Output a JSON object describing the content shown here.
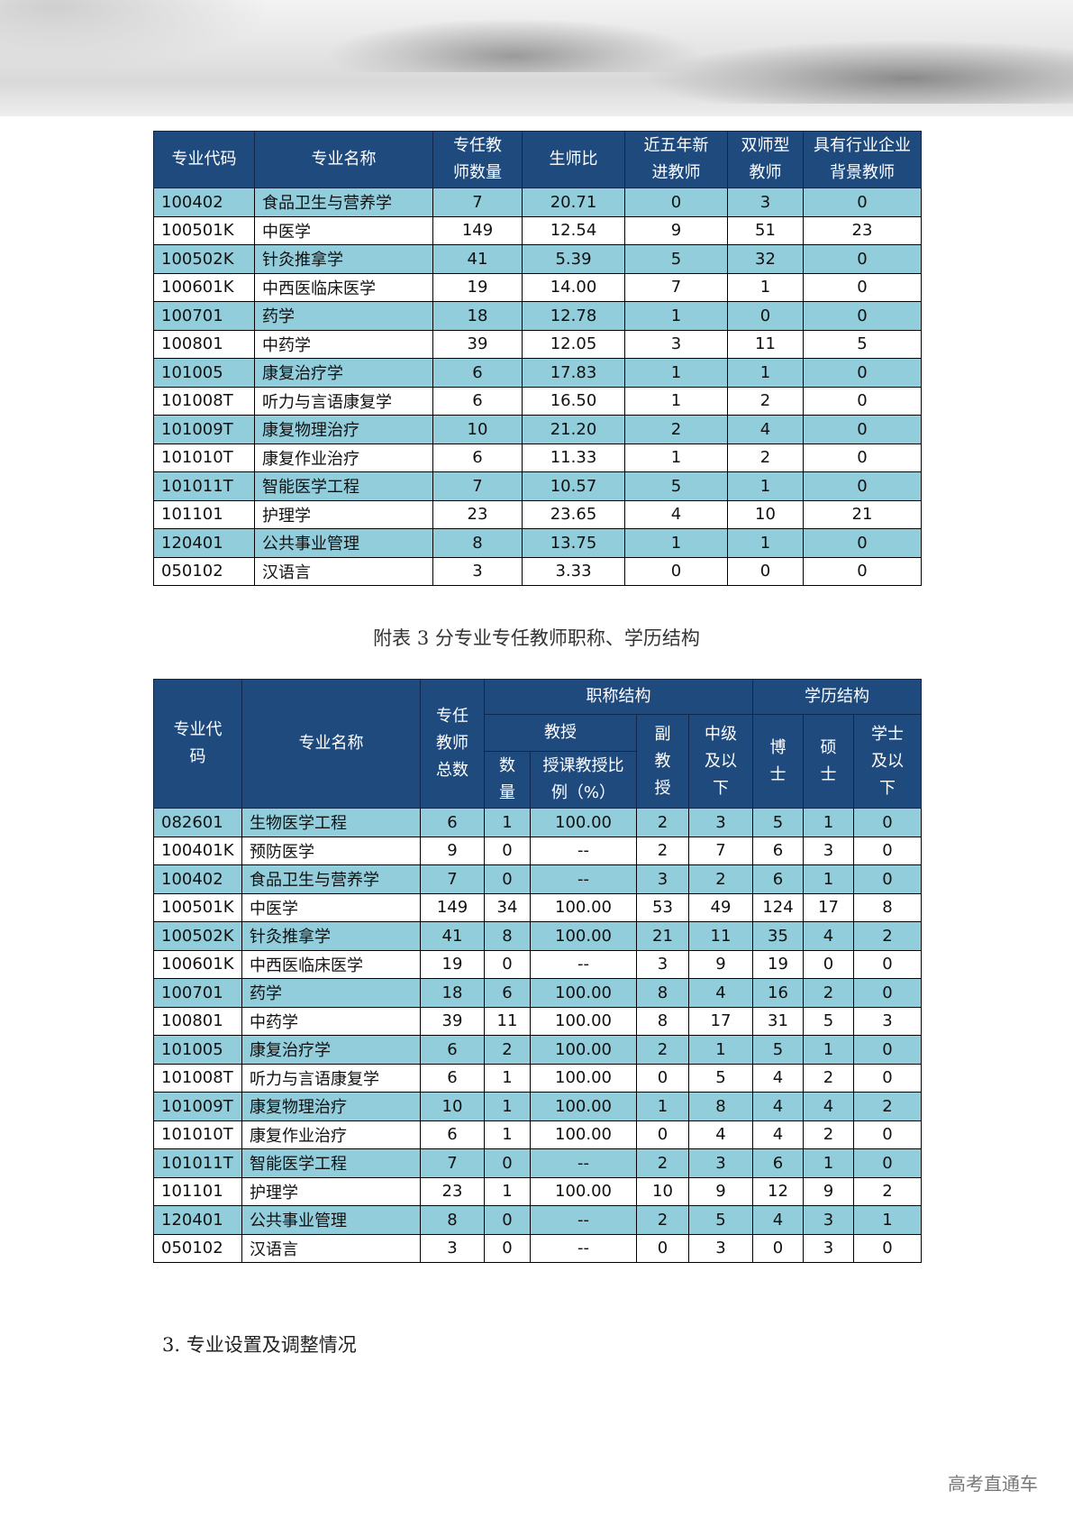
{
  "table1": {
    "headers": [
      "专业代码",
      "专业名称",
      "专任教师数量",
      "生师比",
      "近五年新进教师",
      "双师型教师",
      "具有行业企业背景教师"
    ],
    "rows": [
      [
        "100402",
        "食品卫生与营养学",
        "7",
        "20.71",
        "0",
        "3",
        "0"
      ],
      [
        "100501K",
        "中医学",
        "149",
        "12.54",
        "9",
        "51",
        "23"
      ],
      [
        "100502K",
        "针灸推拿学",
        "41",
        "5.39",
        "5",
        "32",
        "0"
      ],
      [
        "100601K",
        "中西医临床医学",
        "19",
        "14.00",
        "7",
        "1",
        "0"
      ],
      [
        "100701",
        "药学",
        "18",
        "12.78",
        "1",
        "0",
        "0"
      ],
      [
        "100801",
        "中药学",
        "39",
        "12.05",
        "3",
        "11",
        "5"
      ],
      [
        "101005",
        "康复治疗学",
        "6",
        "17.83",
        "1",
        "1",
        "0"
      ],
      [
        "101008T",
        "听力与言语康复学",
        "6",
        "16.50",
        "1",
        "2",
        "0"
      ],
      [
        "101009T",
        "康复物理治疗",
        "10",
        "21.20",
        "2",
        "4",
        "0"
      ],
      [
        "101010T",
        "康复作业治疗",
        "6",
        "11.33",
        "1",
        "2",
        "0"
      ],
      [
        "101011T",
        "智能医学工程",
        "7",
        "10.57",
        "5",
        "1",
        "0"
      ],
      [
        "101101",
        "护理学",
        "23",
        "23.65",
        "4",
        "10",
        "21"
      ],
      [
        "120401",
        "公共事业管理",
        "8",
        "13.75",
        "1",
        "1",
        "0"
      ],
      [
        "050102",
        "汉语言",
        "3",
        "3.33",
        "0",
        "0",
        "0"
      ]
    ]
  },
  "caption": "附表 3 分专业专任教师职称、学历结构",
  "table2": {
    "headers": {
      "code": "专业代码",
      "name": "专业名称",
      "total": "专任教师总数",
      "title_group": "职称结构",
      "edu_group": "学历结构",
      "prof": "教授",
      "prof_count": "数量",
      "prof_ratio": "授课教授比例（%）",
      "assoc": "副教授",
      "mid": "中级及以下",
      "phd": "博士",
      "master": "硕士",
      "bachelor": "学士及以下"
    },
    "rows": [
      [
        "082601",
        "生物医学工程",
        "6",
        "1",
        "100.00",
        "2",
        "3",
        "5",
        "1",
        "0"
      ],
      [
        "100401K",
        "预防医学",
        "9",
        "0",
        "--",
        "2",
        "7",
        "6",
        "3",
        "0"
      ],
      [
        "100402",
        "食品卫生与营养学",
        "7",
        "0",
        "--",
        "3",
        "2",
        "6",
        "1",
        "0"
      ],
      [
        "100501K",
        "中医学",
        "149",
        "34",
        "100.00",
        "53",
        "49",
        "124",
        "17",
        "8"
      ],
      [
        "100502K",
        "针灸推拿学",
        "41",
        "8",
        "100.00",
        "21",
        "11",
        "35",
        "4",
        "2"
      ],
      [
        "100601K",
        "中西医临床医学",
        "19",
        "0",
        "--",
        "3",
        "9",
        "19",
        "0",
        "0"
      ],
      [
        "100701",
        "药学",
        "18",
        "6",
        "100.00",
        "8",
        "4",
        "16",
        "2",
        "0"
      ],
      [
        "100801",
        "中药学",
        "39",
        "11",
        "100.00",
        "8",
        "17",
        "31",
        "5",
        "3"
      ],
      [
        "101005",
        "康复治疗学",
        "6",
        "2",
        "100.00",
        "2",
        "1",
        "5",
        "1",
        "0"
      ],
      [
        "101008T",
        "听力与言语康复学",
        "6",
        "1",
        "100.00",
        "0",
        "5",
        "4",
        "2",
        "0"
      ],
      [
        "101009T",
        "康复物理治疗",
        "10",
        "1",
        "100.00",
        "1",
        "8",
        "4",
        "4",
        "2"
      ],
      [
        "101010T",
        "康复作业治疗",
        "6",
        "1",
        "100.00",
        "0",
        "4",
        "4",
        "2",
        "0"
      ],
      [
        "101011T",
        "智能医学工程",
        "7",
        "0",
        "--",
        "2",
        "3",
        "6",
        "1",
        "0"
      ],
      [
        "101101",
        "护理学",
        "23",
        "1",
        "100.00",
        "10",
        "9",
        "12",
        "9",
        "2"
      ],
      [
        "120401",
        "公共事业管理",
        "8",
        "0",
        "--",
        "2",
        "5",
        "4",
        "3",
        "1"
      ],
      [
        "050102",
        "汉语言",
        "3",
        "0",
        "--",
        "0",
        "3",
        "0",
        "3",
        "0"
      ]
    ]
  },
  "section_heading": "3. 专业设置及调整情况",
  "watermark": "高考直通车",
  "colors": {
    "header_bg": "#1f4a7e",
    "alt_row_bg": "#92cddc"
  }
}
